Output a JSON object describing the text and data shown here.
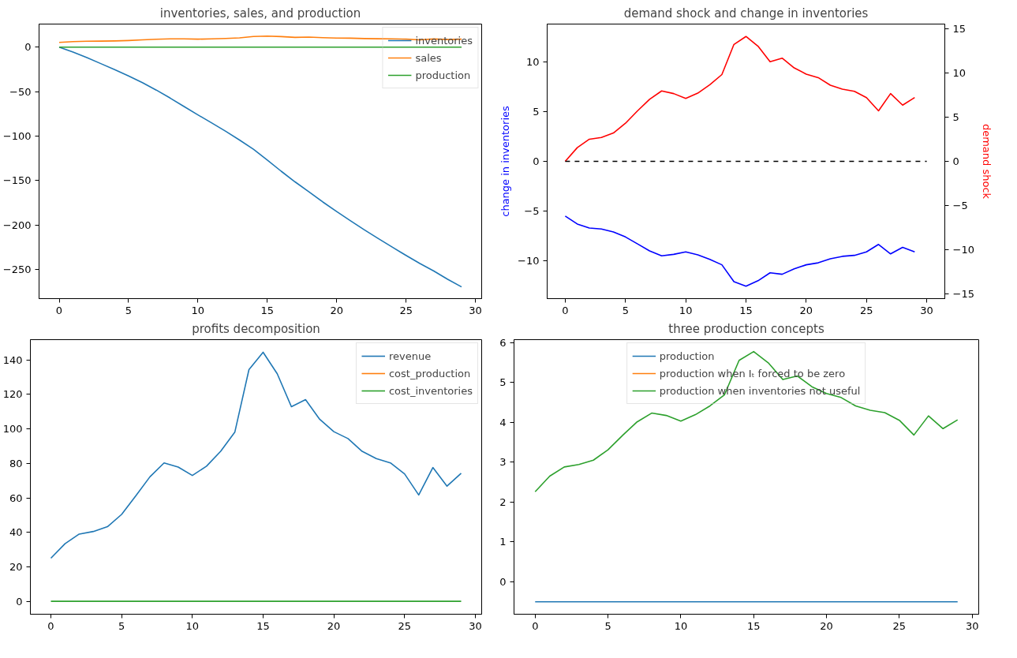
{
  "chart_data": [
    {
      "type": "line",
      "title": "inventories, sales, and production",
      "x": [
        0,
        1,
        2,
        3,
        4,
        5,
        6,
        7,
        8,
        9,
        10,
        11,
        12,
        13,
        14,
        15,
        16,
        17,
        18,
        19,
        20,
        21,
        22,
        23,
        24,
        25,
        26,
        27,
        28,
        29
      ],
      "xlim": [
        -1.45,
        30.45
      ],
      "xticks": [
        0,
        5,
        10,
        15,
        20,
        25,
        30
      ],
      "ylim": [
        -283,
        26
      ],
      "yticks": [
        {
          "value": -250,
          "label": "−250"
        },
        {
          "value": -200,
          "label": "−200"
        },
        {
          "value": -150,
          "label": "−150"
        },
        {
          "value": -100,
          "label": "−100"
        },
        {
          "value": -50,
          "label": "−50"
        },
        0
      ],
      "legend": "top right",
      "series": [
        {
          "name": "inventories",
          "color": "#1f77b4",
          "values": [
            0,
            -5.5,
            -11.8,
            -18.5,
            -25.3,
            -32.4,
            -40.0,
            -48.3,
            -57.3,
            -66.8,
            -76.2,
            -85.3,
            -94.7,
            -104.5,
            -114.9,
            -127.0,
            -139.6,
            -151.6,
            -162.8,
            -174.2,
            -185.0,
            -195.4,
            -205.6,
            -215.4,
            -225.0,
            -234.4,
            -243.5,
            -251.9,
            -261.2,
            -269.8
          ]
        },
        {
          "name": "sales",
          "color": "#ff7f0e",
          "values": [
            5.4,
            6.2,
            6.7,
            6.8,
            7.0,
            7.5,
            8.2,
            8.9,
            9.4,
            9.3,
            9.0,
            9.3,
            9.8,
            10.4,
            12.0,
            12.4,
            11.9,
            11.0,
            11.3,
            10.7,
            10.3,
            10.1,
            9.7,
            9.5,
            9.4,
            9.0,
            8.3,
            9.2,
            8.6,
            9.0
          ]
        },
        {
          "name": "production",
          "color": "#2ca02c",
          "values": [
            0,
            0,
            0,
            0,
            0,
            0,
            0,
            0,
            0,
            0,
            0,
            0,
            0,
            0,
            0,
            0,
            0,
            0,
            0,
            0,
            0,
            0,
            0,
            0,
            0,
            0,
            0,
            0,
            0,
            0
          ]
        }
      ]
    },
    {
      "type": "line",
      "title": "demand shock and change in inventories",
      "ylabel": "change in inventories",
      "y2label": "demand shock",
      "x": [
        0,
        1,
        2,
        3,
        4,
        5,
        6,
        7,
        8,
        9,
        10,
        11,
        12,
        13,
        14,
        15,
        16,
        17,
        18,
        19,
        20,
        21,
        22,
        23,
        24,
        25,
        26,
        27,
        28,
        29
      ],
      "xlim": [
        -1.5,
        31.5
      ],
      "xticks": [
        0,
        5,
        10,
        15,
        20,
        25,
        30
      ],
      "ylim": [
        -13.8,
        13.8
      ],
      "yticks": [
        {
          "value": -10,
          "label": "−10"
        },
        {
          "value": -5,
          "label": "−5"
        },
        0,
        5,
        10
      ],
      "y2lim": [
        -15.5,
        15.5
      ],
      "y2ticks": [
        {
          "value": -15,
          "label": "−15"
        },
        {
          "value": -10,
          "label": "−10"
        },
        {
          "value": -5,
          "label": "−5"
        },
        0,
        5,
        10,
        15
      ],
      "series": [
        {
          "color": "#0000ff",
          "values": [
            -5.5,
            -6.3,
            -6.7,
            -6.8,
            -7.1,
            -7.6,
            -8.3,
            -9.0,
            -9.5,
            -9.35,
            -9.1,
            -9.4,
            -9.85,
            -10.4,
            -12.1,
            -12.55,
            -12.0,
            -11.2,
            -11.35,
            -10.8,
            -10.4,
            -10.2,
            -9.8,
            -9.55,
            -9.45,
            -9.1,
            -8.35,
            -9.3,
            -8.65,
            -9.1
          ]
        },
        {
          "color": "#ff0000",
          "axis": "y2",
          "values": [
            0,
            1.55,
            2.5,
            2.7,
            3.2,
            4.3,
            5.7,
            7.0,
            7.95,
            7.65,
            7.1,
            7.7,
            8.65,
            9.8,
            13.2,
            14.1,
            13.0,
            11.25,
            11.65,
            10.55,
            9.85,
            9.45,
            8.6,
            8.15,
            7.9,
            7.2,
            5.7,
            7.65,
            6.35,
            7.2
          ]
        },
        {
          "color": "#000000",
          "line_style": "dashed",
          "x": [
            0,
            30
          ],
          "values": [
            0,
            0
          ]
        }
      ]
    },
    {
      "type": "line",
      "title": "profits decomposition",
      "x": [
        0,
        1,
        2,
        3,
        4,
        5,
        6,
        7,
        8,
        9,
        10,
        11,
        12,
        13,
        14,
        15,
        16,
        17,
        18,
        19,
        20,
        21,
        22,
        23,
        24,
        25,
        26,
        27,
        28,
        29
      ],
      "xlim": [
        -1.45,
        30.45
      ],
      "xticks": [
        0,
        5,
        10,
        15,
        20,
        25,
        30
      ],
      "ylim": [
        -7.5,
        151.8
      ],
      "yticks": [
        0,
        20,
        40,
        60,
        80,
        100,
        120,
        140
      ],
      "legend": "top right",
      "series": [
        {
          "name": "revenue",
          "color": "#1f77b4",
          "values": [
            25.0,
            33.4,
            39.0,
            40.5,
            43.3,
            50.4,
            61.2,
            72.2,
            80.3,
            77.9,
            73.0,
            78.4,
            87.0,
            98.1,
            134.4,
            144.5,
            132.0,
            112.9,
            117.0,
            105.6,
            98.4,
            94.4,
            87.0,
            82.8,
            80.3,
            73.9,
            61.7,
            77.6,
            66.8,
            74.3
          ]
        },
        {
          "name": "cost_production",
          "color": "#ff7f0e",
          "values": [
            null,
            null,
            null,
            null,
            null,
            null,
            null,
            null,
            null,
            null,
            null,
            null,
            null,
            null,
            null,
            null,
            null,
            null,
            null,
            null,
            null,
            null,
            null,
            null,
            null,
            null,
            null,
            null,
            null,
            null
          ]
        },
        {
          "name": "cost_inventories",
          "color": "#2ca02c",
          "values": [
            0,
            0,
            0,
            0,
            0,
            0,
            0,
            0,
            0,
            0,
            0,
            0,
            0,
            0,
            0,
            0,
            0,
            0,
            0,
            0,
            0,
            0,
            0,
            0,
            0,
            0,
            0,
            0,
            0,
            0
          ]
        }
      ]
    },
    {
      "type": "line",
      "title": "three production concepts",
      "x": [
        0,
        1,
        2,
        3,
        4,
        5,
        6,
        7,
        8,
        9,
        10,
        11,
        12,
        13,
        14,
        15,
        16,
        17,
        18,
        19,
        20,
        21,
        22,
        23,
        24,
        25,
        26,
        27,
        28,
        29
      ],
      "xlim": [
        -1.45,
        30.45
      ],
      "xticks": [
        0,
        5,
        10,
        15,
        20,
        25,
        30
      ],
      "ylim": [
        -0.81,
        6.07
      ],
      "yticks": [
        0,
        1,
        2,
        3,
        4,
        5,
        6
      ],
      "legend": "top",
      "series": [
        {
          "name": "production",
          "color": "#1f77b4",
          "values": [
            -0.5,
            -0.5,
            -0.5,
            -0.5,
            -0.5,
            -0.5,
            -0.5,
            -0.5,
            -0.5,
            -0.5,
            -0.5,
            -0.5,
            -0.5,
            -0.5,
            -0.5,
            -0.5,
            -0.5,
            -0.5,
            -0.5,
            -0.5,
            -0.5,
            -0.5,
            -0.5,
            -0.5,
            -0.5,
            -0.5,
            -0.5,
            -0.5,
            -0.5,
            -0.5
          ]
        },
        {
          "name": "production when Iₜ forced to be zero",
          "color": "#ff7f0e",
          "values": [
            null,
            null,
            null,
            null,
            null,
            null,
            null,
            null,
            null,
            null,
            null,
            null,
            null,
            null,
            null,
            null,
            null,
            null,
            null,
            null,
            null,
            null,
            null,
            null,
            null,
            null,
            null,
            null,
            null,
            null
          ]
        },
        {
          "name": "production when inventories not useful",
          "color": "#2ca02c",
          "values": [
            2.26,
            2.65,
            2.88,
            2.94,
            3.05,
            3.31,
            3.67,
            4.01,
            4.23,
            4.17,
            4.03,
            4.19,
            4.41,
            4.69,
            5.55,
            5.77,
            5.49,
            5.07,
            5.16,
            4.89,
            4.72,
            4.62,
            4.41,
            4.3,
            4.24,
            4.05,
            3.68,
            4.16,
            3.84,
            4.06
          ]
        }
      ]
    }
  ]
}
